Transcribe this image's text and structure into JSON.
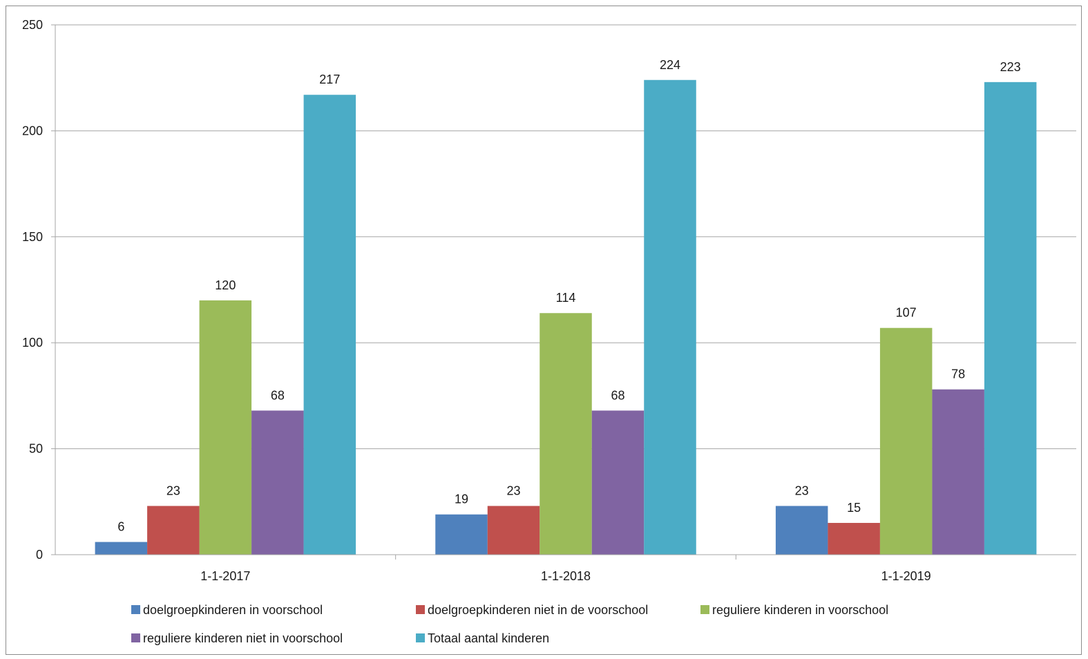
{
  "chart_data": {
    "type": "bar",
    "title": "",
    "xlabel": "",
    "ylabel": "",
    "ylim": [
      0,
      250
    ],
    "yticks": [
      0,
      50,
      100,
      150,
      200,
      250
    ],
    "grid": true,
    "legend": "bottom",
    "categories": [
      "1-1-2017",
      "1-1-2018",
      "1-1-2019"
    ],
    "series": [
      {
        "name": "doelgroepkinderen in voorschool",
        "color": "#4f81bd",
        "values": [
          6,
          19,
          23
        ]
      },
      {
        "name": "doelgroepkinderen niet in de voorschool",
        "color": "#c0504d",
        "values": [
          23,
          23,
          15
        ]
      },
      {
        "name": "reguliere kinderen in voorschool",
        "color": "#9bbb59",
        "values": [
          120,
          114,
          107
        ]
      },
      {
        "name": "reguliere kinderen niet in voorschool",
        "color": "#8064a2",
        "values": [
          68,
          68,
          78
        ]
      },
      {
        "name": "Totaal aantal kinderen",
        "color": "#4bacc6",
        "values": [
          217,
          224,
          223
        ]
      }
    ]
  }
}
